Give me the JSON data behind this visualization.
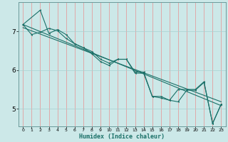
{
  "title": "",
  "xlabel": "Humidex (Indice chaleur)",
  "background_color": "#cce8e8",
  "grid_color_v": "#e89090",
  "grid_color_h": "#a8d0d0",
  "line_color": "#1a7068",
  "xlim": [
    -0.5,
    23.5
  ],
  "ylim": [
    4.55,
    7.75
  ],
  "xticks": [
    0,
    1,
    2,
    3,
    4,
    5,
    6,
    7,
    8,
    9,
    10,
    11,
    12,
    13,
    14,
    15,
    16,
    17,
    18,
    19,
    20,
    21,
    22,
    23
  ],
  "yticks": [
    5,
    6,
    7
  ],
  "trend1_x": [
    0,
    23
  ],
  "trend1_y": [
    7.18,
    5.08
  ],
  "trend2_x": [
    0,
    23
  ],
  "trend2_y": [
    7.1,
    5.18
  ],
  "line1_x": [
    0,
    2,
    3,
    4,
    5,
    6,
    7,
    8,
    9,
    10,
    11,
    12,
    13,
    14,
    15,
    16,
    17,
    18,
    19,
    20,
    21,
    22,
    23
  ],
  "line1_y": [
    7.18,
    7.55,
    6.95,
    7.05,
    6.92,
    6.68,
    6.58,
    6.48,
    6.28,
    6.18,
    6.28,
    6.28,
    5.95,
    5.95,
    5.32,
    5.32,
    5.22,
    5.18,
    5.48,
    5.48,
    5.68,
    4.62,
    5.12
  ],
  "line2_x": [
    0,
    1,
    2,
    3,
    4,
    5,
    6,
    7,
    8,
    9,
    10,
    11,
    12,
    13,
    14,
    15,
    16,
    17,
    18,
    19,
    20,
    21,
    22,
    23
  ],
  "line2_y": [
    7.18,
    6.92,
    6.98,
    7.08,
    7.02,
    6.82,
    6.68,
    6.58,
    6.42,
    6.22,
    6.12,
    6.28,
    6.28,
    5.92,
    5.92,
    5.32,
    5.28,
    5.22,
    5.5,
    5.5,
    5.5,
    5.7,
    4.62,
    5.12
  ]
}
